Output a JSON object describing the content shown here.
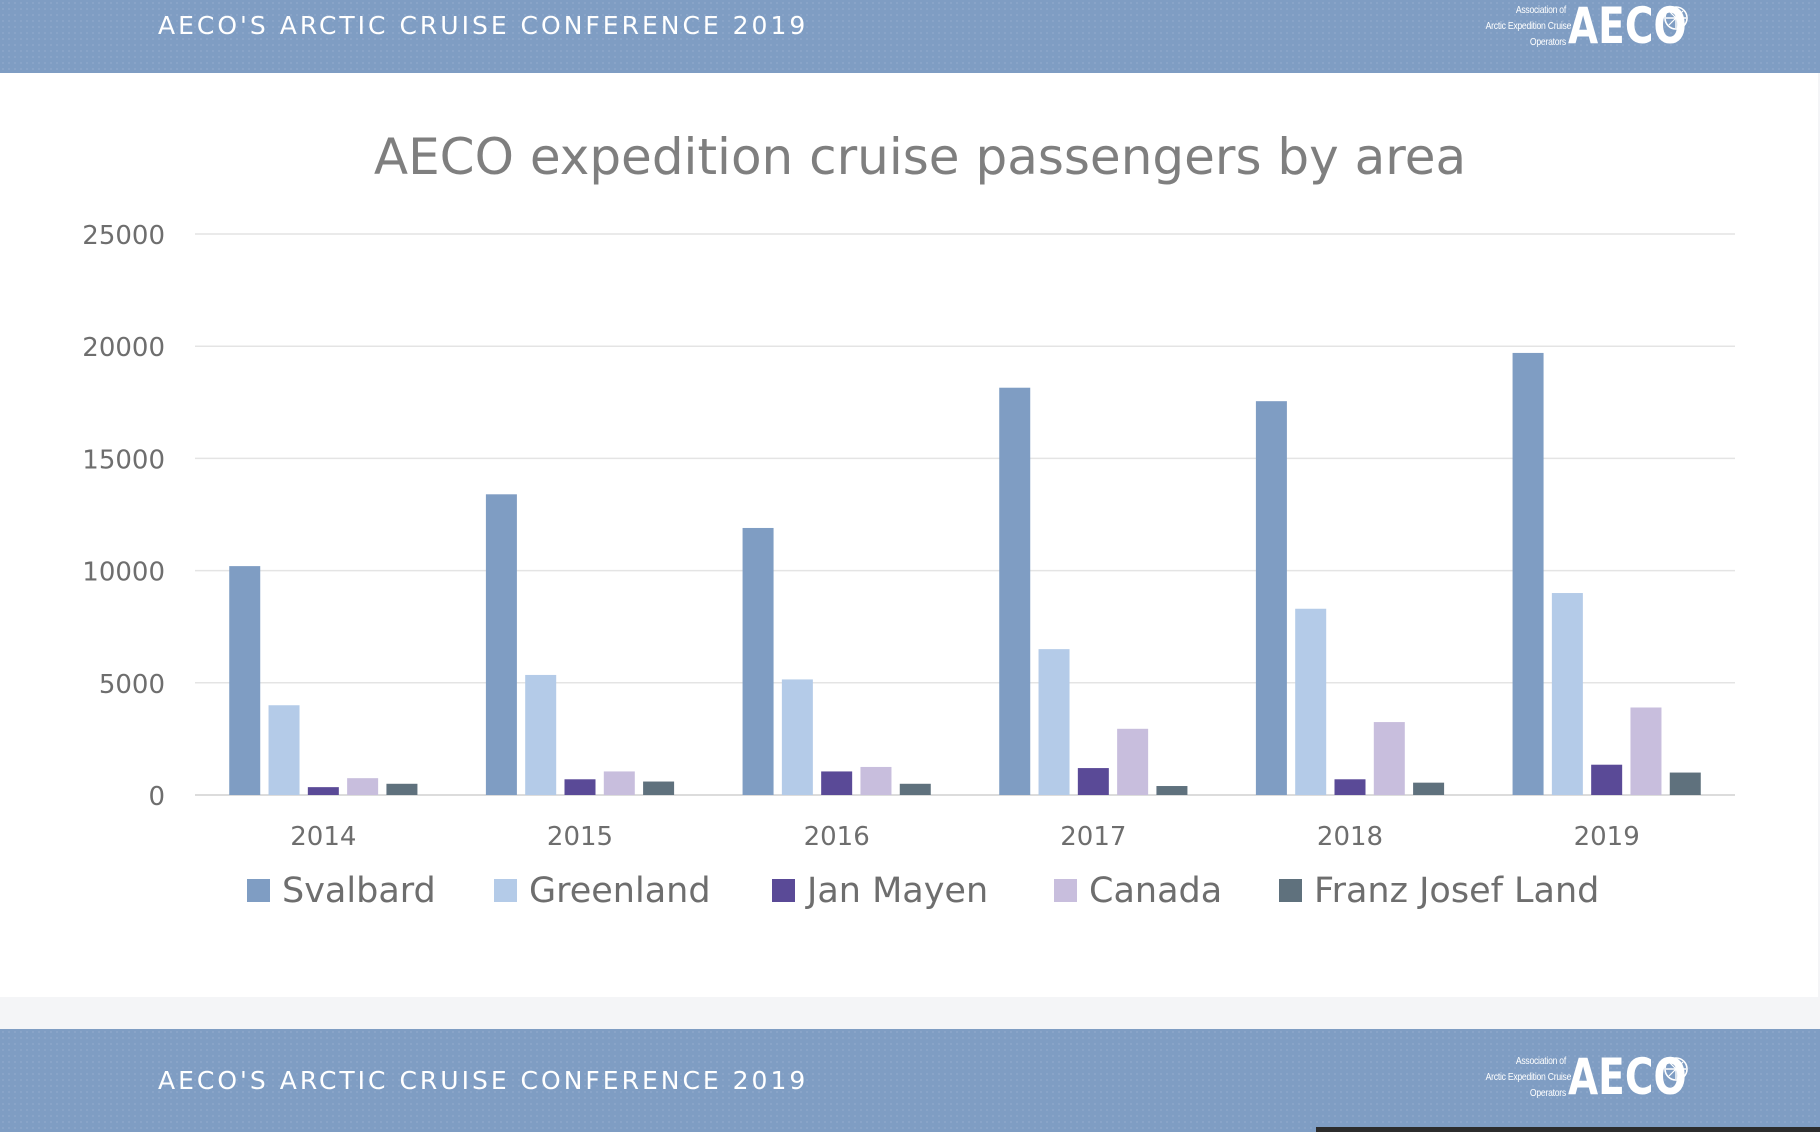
{
  "header": {
    "title": "AECO'S ARCTIC CRUISE CONFERENCE 2019"
  },
  "footer": {
    "title": "AECO'S ARCTIC CRUISE CONFERENCE 2019"
  },
  "logo": {
    "subtitle_lines": [
      "Association of",
      "Arctic Expedition Cruise",
      "Operators"
    ],
    "wordmark": "AECO",
    "emblem_icon": "compass-rose-icon"
  },
  "colors": {
    "band": "#7f9dc3",
    "Svalbard": "#7f9dc3",
    "Greenland": "#b4cbe8",
    "Jan Mayen": "#5a4a97",
    "Canada": "#c8bedd",
    "Franz Josef Land": "#5f717d"
  },
  "chart_data": {
    "type": "bar",
    "title": "AECO expedition cruise passengers by area",
    "xlabel": "",
    "ylabel": "",
    "categories": [
      "2014",
      "2015",
      "2016",
      "2017",
      "2018",
      "2019"
    ],
    "series": [
      {
        "name": "Svalbard",
        "values": [
          10200,
          13400,
          11900,
          18150,
          17550,
          19700
        ]
      },
      {
        "name": "Greenland",
        "values": [
          4000,
          5350,
          5150,
          6500,
          8300,
          9000
        ]
      },
      {
        "name": "Jan Mayen",
        "values": [
          350,
          700,
          1050,
          1200,
          700,
          1350
        ]
      },
      {
        "name": "Canada",
        "values": [
          750,
          1050,
          1250,
          2950,
          3250,
          3900
        ]
      },
      {
        "name": "Franz Josef Land",
        "values": [
          500,
          600,
          500,
          400,
          550,
          1000
        ]
      }
    ],
    "yticks": [
      "0",
      "5000",
      "10000",
      "15000",
      "20000",
      "25000"
    ],
    "ylim": [
      0,
      25000
    ],
    "grid": true,
    "legend": "bottom"
  }
}
